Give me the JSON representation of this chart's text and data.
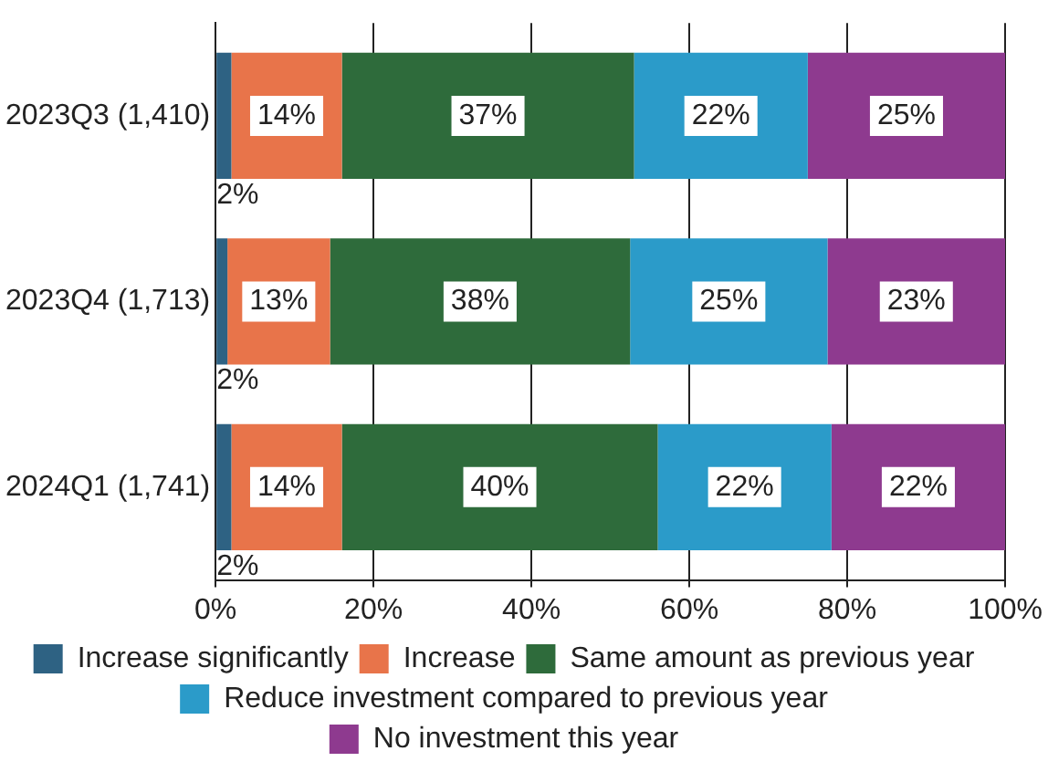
{
  "chart_data": {
    "type": "bar",
    "orientation": "horizontal",
    "stacked": true,
    "categories": [
      "2023Q3 (1,410)",
      "2023Q4 (1,713)",
      "2024Q1 (1,741)"
    ],
    "series": [
      {
        "name": "Increase significantly",
        "color": "#2e6283",
        "values": [
          2,
          1.5,
          2
        ],
        "value_labels": [
          "2%",
          "2%",
          "2%"
        ]
      },
      {
        "name": "Increase",
        "color": "#e8744a",
        "values": [
          14,
          13,
          14
        ],
        "value_labels": [
          "14%",
          "13%",
          "14%"
        ]
      },
      {
        "name": "Same amount as previous year",
        "color": "#2e6b3b",
        "values": [
          37,
          38,
          40
        ],
        "value_labels": [
          "37%",
          "38%",
          "40%"
        ]
      },
      {
        "name": "Reduce investment compared to previous year",
        "color": "#2b9bc9",
        "values": [
          22,
          25,
          22
        ],
        "value_labels": [
          "22%",
          "25%",
          "22%"
        ]
      },
      {
        "name": "No investment this year",
        "color": "#8e3a8f",
        "values": [
          25,
          22.5,
          22
        ],
        "value_labels": [
          "25%",
          "23%",
          "22%"
        ]
      }
    ],
    "xlim": [
      0,
      100
    ],
    "xticks": [
      {
        "value": 0,
        "label": "0%"
      },
      {
        "value": 20,
        "label": "20%"
      },
      {
        "value": 40,
        "label": "40%"
      },
      {
        "value": 60,
        "label": "60%"
      },
      {
        "value": 80,
        "label": "80%"
      },
      {
        "value": 100,
        "label": "100%"
      }
    ],
    "grid": "x",
    "legend": "bottom"
  }
}
